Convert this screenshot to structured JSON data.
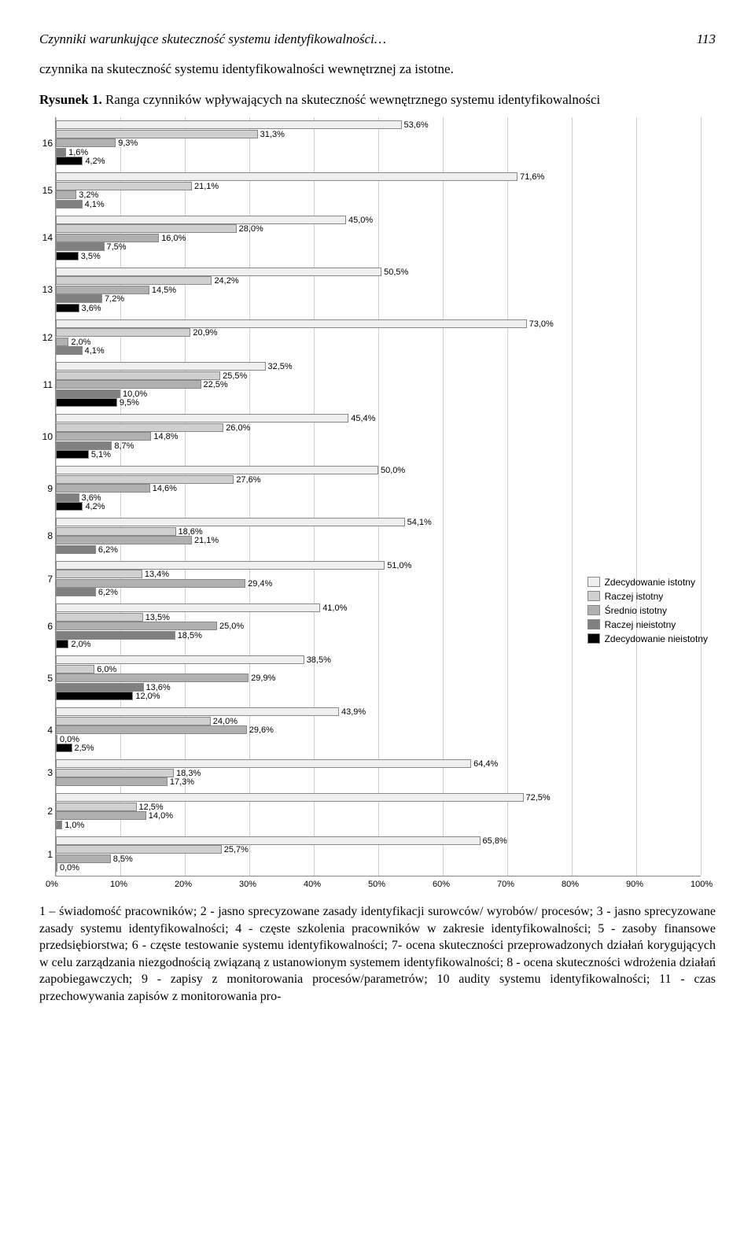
{
  "header": {
    "running_title": "Czynniki warunkujące skuteczność systemu identyfikowalności…",
    "page_number": "113"
  },
  "intro_text": "czynnika na skuteczność systemu identyfikowalności wewnętrznej za istotne.",
  "figure_label": "Rysunek 1.",
  "figure_title": "Ranga czynników wpływających na skuteczność wewnętrznego systemu identyfikowalności",
  "chart": {
    "type": "bar",
    "xlim": [
      0,
      100
    ],
    "xtick_step": 10,
    "x_ticks": [
      "0%",
      "10%",
      "20%",
      "30%",
      "40%",
      "50%",
      "60%",
      "70%",
      "80%",
      "90%",
      "100%"
    ],
    "series_colors": [
      "#efefef",
      "#d0d0d0",
      "#b0b0b0",
      "#808080",
      "#000000"
    ],
    "series_labels": [
      "Zdecydowanie istotny",
      "Raczej istotny",
      "Średnio istotny",
      "Raczej nieistotny",
      "Zdecydowanie nieistotny"
    ],
    "categories": [
      {
        "label": "16",
        "values": [
          53.6,
          31.3,
          9.3,
          1.6,
          4.2
        ]
      },
      {
        "label": "15",
        "values": [
          71.6,
          21.1,
          3.2,
          4.1,
          null
        ]
      },
      {
        "label": "14",
        "values": [
          45.0,
          28.0,
          16.0,
          7.5,
          3.5
        ]
      },
      {
        "label": "13",
        "values": [
          50.5,
          24.2,
          14.5,
          7.2,
          3.6
        ]
      },
      {
        "label": "12",
        "values": [
          73.0,
          20.9,
          2.0,
          4.1,
          null
        ]
      },
      {
        "label": "11",
        "values": [
          32.5,
          25.5,
          22.5,
          10.0,
          9.5
        ]
      },
      {
        "label": "10",
        "values": [
          45.4,
          26.0,
          14.8,
          8.7,
          5.1
        ]
      },
      {
        "label": "9",
        "values": [
          50.0,
          27.6,
          14.6,
          3.6,
          4.2
        ]
      },
      {
        "label": "8",
        "values": [
          54.1,
          18.6,
          21.1,
          6.2,
          null
        ]
      },
      {
        "label": "7",
        "values": [
          51.0,
          13.4,
          29.4,
          6.2,
          null
        ]
      },
      {
        "label": "6",
        "values": [
          41.0,
          13.5,
          25.0,
          18.5,
          2.0
        ]
      },
      {
        "label": "5",
        "values": [
          38.5,
          6.0,
          29.9,
          13.6,
          12.0
        ]
      },
      {
        "label": "4",
        "values": [
          43.9,
          24.0,
          29.6,
          0.0,
          2.5
        ]
      },
      {
        "label": "3",
        "values": [
          64.4,
          18.3,
          17.3,
          null,
          null
        ]
      },
      {
        "label": "2",
        "values": [
          72.5,
          12.5,
          14.0,
          1.0,
          null
        ]
      },
      {
        "label": "1",
        "values": [
          65.8,
          25.7,
          8.5,
          0.0,
          null
        ]
      }
    ]
  },
  "footnote": "1 – świadomość pracowników; 2 - jasno sprecyzowane zasady identyfikacji surowców/ wyrobów/ procesów; 3 - jasno sprecyzowane zasady systemu identyfikowalności; 4 - częste szkolenia pracowników w zakresie identyfikowalności; 5 - zasoby finansowe przedsiębiorstwa; 6 - częste testowanie systemu identyfikowalności; 7- ocena skuteczności przeprowadzonych działań korygujących w celu zarządzania niezgodnością związaną z ustanowionym systemem identyfikowalności; 8 - ocena skuteczności wdrożenia działań zapobiegawczych; 9 - zapisy z monitorowania procesów/parametrów; 10 audity systemu identyfikowalności; 11 - czas przechowywania zapisów z monitorowania pro-"
}
